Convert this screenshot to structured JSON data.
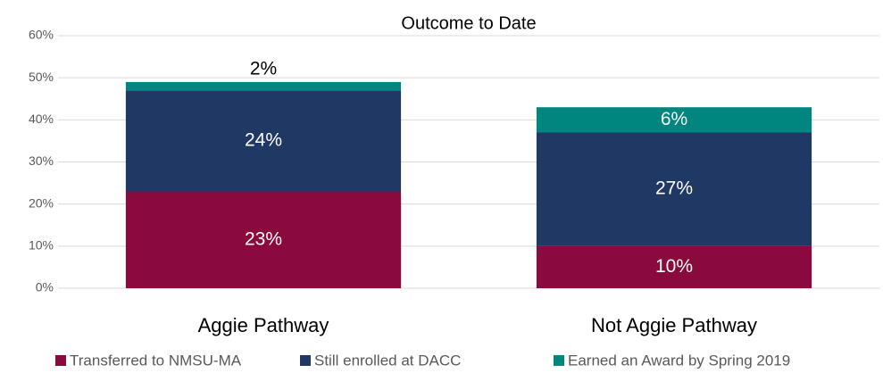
{
  "chart_data": {
    "type": "stacked_bar",
    "title": "Outcome to Date",
    "categories": [
      "Aggie Pathway",
      "Not Aggie Pathway"
    ],
    "series": [
      {
        "name": "Transferred to NMSU-MA",
        "color": "#8b0a3e",
        "values": [
          23,
          10
        ],
        "value_labels": [
          "23%",
          "10%"
        ]
      },
      {
        "name": "Still enrolled at DACC",
        "color": "#1f3864",
        "values": [
          24,
          27
        ],
        "value_labels": [
          "24%",
          "27%"
        ]
      },
      {
        "name": "Earned an Award by Spring 2019",
        "color": "#00857f",
        "values": [
          2,
          6
        ],
        "value_labels": [
          "2%",
          "6%"
        ]
      }
    ],
    "ylim": [
      0,
      60
    ],
    "yticks": [
      {
        "value": 0,
        "label": "0%"
      },
      {
        "value": 10,
        "label": "10%"
      },
      {
        "value": 20,
        "label": "20%"
      },
      {
        "value": 30,
        "label": "30%"
      },
      {
        "value": 40,
        "label": "40%"
      },
      {
        "value": 50,
        "label": "50%"
      },
      {
        "value": 60,
        "label": "60%"
      }
    ],
    "grid": true,
    "legend": "bottom"
  }
}
